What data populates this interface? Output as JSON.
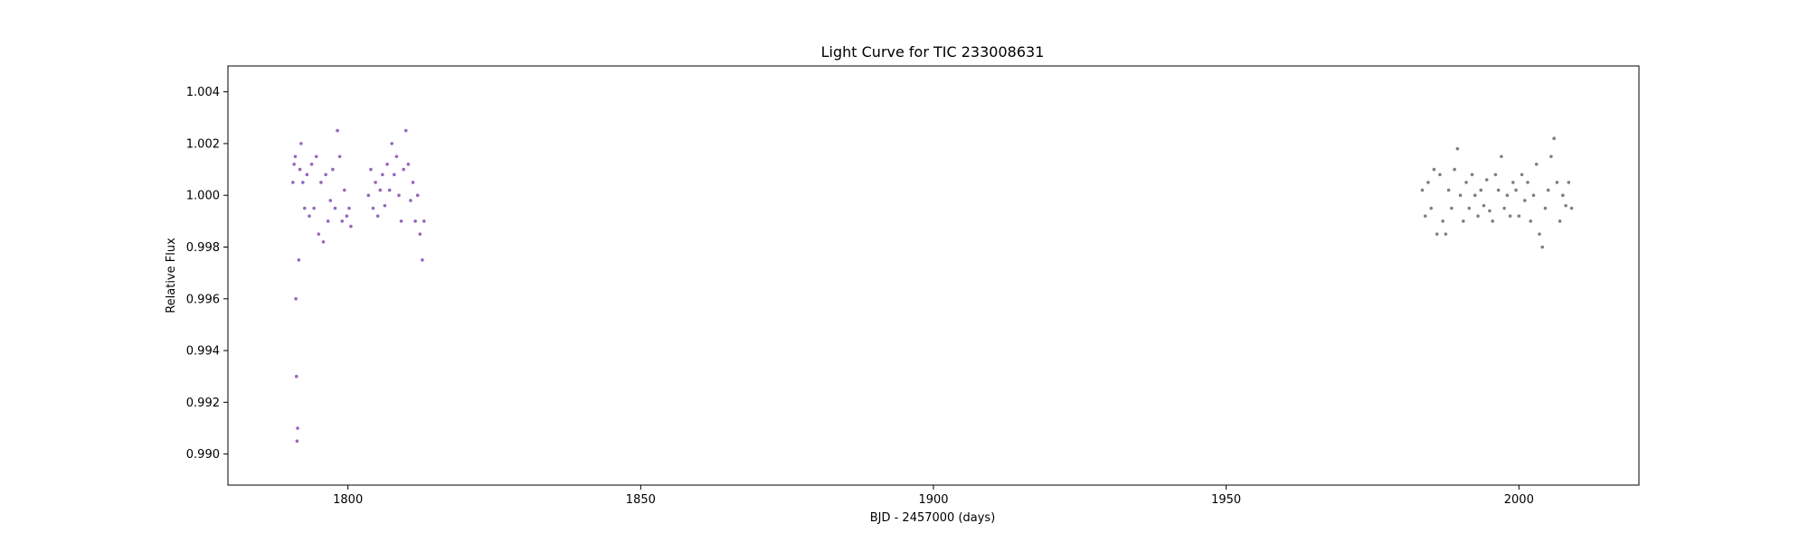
{
  "chart_data": {
    "type": "scatter",
    "title": "Light Curve for TIC 233008631",
    "xlabel": "BJD - 2457000 (days)",
    "ylabel": "Relative Flux",
    "xlim": [
      1779.5,
      2020.5
    ],
    "ylim": [
      0.9888,
      1.005
    ],
    "xticks": [
      1800,
      1850,
      1900,
      1950,
      2000
    ],
    "xtick_labels": [
      "1800",
      "1850",
      "1900",
      "1950",
      "2000"
    ],
    "yticks": [
      0.99,
      0.992,
      0.994,
      0.996,
      0.998,
      1.0,
      1.002,
      1.004
    ],
    "ytick_labels": [
      "0.990",
      "0.992",
      "0.994",
      "0.996",
      "0.998",
      "1.000",
      "1.002",
      "1.004"
    ],
    "grid": false,
    "series": [
      {
        "color": "#9467bd",
        "x": [
          1790.6,
          1790.8,
          1791.0,
          1791.1,
          1791.2,
          1791.3,
          1791.4,
          1791.6,
          1791.8,
          1792.0,
          1792.3,
          1792.6,
          1793.0,
          1793.4,
          1793.8,
          1794.2,
          1794.6,
          1795.0,
          1795.4,
          1795.8,
          1796.2,
          1796.6,
          1797.0,
          1797.4,
          1797.8,
          1798.2,
          1798.6,
          1799.0,
          1799.4,
          1799.8,
          1800.2,
          1800.5,
          1803.5,
          1803.9,
          1804.3,
          1804.7,
          1805.1,
          1805.5,
          1805.9,
          1806.3,
          1806.7,
          1807.1,
          1807.5,
          1807.9,
          1808.3,
          1808.7,
          1809.1,
          1809.5,
          1809.9,
          1810.3,
          1810.7,
          1811.1,
          1811.5,
          1811.9,
          1812.3,
          1812.7,
          1813.0
        ],
        "y": [
          1.0005,
          1.0012,
          1.0015,
          0.996,
          0.993,
          0.9905,
          0.991,
          0.9975,
          1.001,
          1.002,
          1.0005,
          0.9995,
          1.0008,
          0.9992,
          1.0012,
          0.9995,
          1.0015,
          0.9985,
          1.0005,
          0.9982,
          1.0008,
          0.999,
          0.9998,
          1.001,
          0.9995,
          1.0025,
          1.0015,
          0.999,
          1.0002,
          0.9992,
          0.9995,
          0.9988,
          1.0,
          1.001,
          0.9995,
          1.0005,
          0.9992,
          1.0002,
          1.0008,
          0.9996,
          1.0012,
          1.0002,
          1.002,
          1.0008,
          1.0015,
          1.0,
          0.999,
          1.001,
          1.0025,
          1.0012,
          0.9998,
          1.0005,
          0.999,
          1.0,
          0.9985,
          0.9975,
          0.999
        ]
      },
      {
        "color": "#7f7f7f",
        "x": [
          1983.5,
          1984.0,
          1984.5,
          1985.0,
          1985.5,
          1986.0,
          1986.5,
          1987.0,
          1987.5,
          1988.0,
          1988.5,
          1989.0,
          1989.5,
          1990.0,
          1990.5,
          1991.0,
          1991.5,
          1992.0,
          1992.5,
          1993.0,
          1993.5,
          1994.0,
          1994.5,
          1995.0,
          1995.5,
          1996.0,
          1996.5,
          1997.0,
          1997.5,
          1998.0,
          1998.5,
          1999.0,
          1999.5,
          2000.0,
          2000.5,
          2001.0,
          2001.5,
          2002.0,
          2002.5,
          2003.0,
          2003.5,
          2004.0,
          2004.5,
          2005.0,
          2005.5,
          2006.0,
          2006.5,
          2007.0,
          2007.5,
          2008.0,
          2008.5,
          2009.0
        ],
        "y": [
          1.0002,
          0.9992,
          1.0005,
          0.9995,
          1.001,
          0.9985,
          1.0008,
          0.999,
          0.9985,
          1.0002,
          0.9995,
          1.001,
          1.0018,
          1.0,
          0.999,
          1.0005,
          0.9995,
          1.0008,
          1.0,
          0.9992,
          1.0002,
          0.9996,
          1.0006,
          0.9994,
          0.999,
          1.0008,
          1.0002,
          1.0015,
          0.9995,
          1.0,
          0.9992,
          1.0005,
          1.0002,
          0.9992,
          1.0008,
          0.9998,
          1.0005,
          0.999,
          1.0,
          1.0012,
          0.9985,
          0.998,
          0.9995,
          1.0002,
          1.0015,
          1.0022,
          1.0005,
          0.999,
          1.0,
          0.9996,
          1.0005,
          0.9995
        ]
      }
    ]
  }
}
